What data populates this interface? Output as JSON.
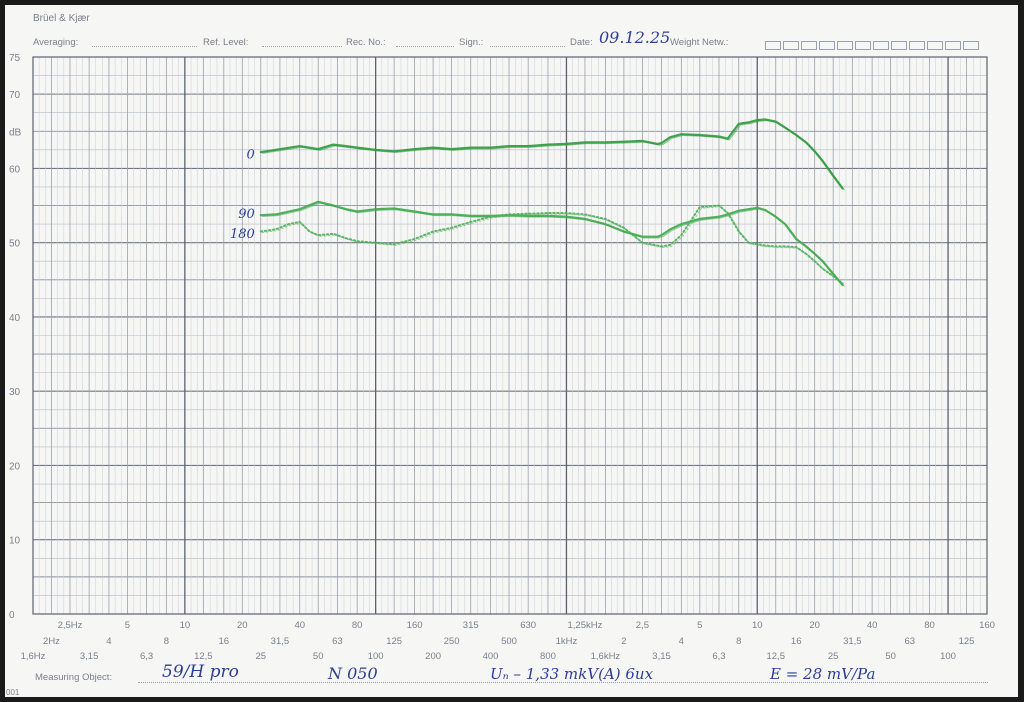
{
  "header": {
    "brand": "Brüel & Kjær",
    "averaging_label": "Averaging:",
    "ref_level_label": "Ref. Level:",
    "rec_no_label": "Rec. No.:",
    "sign_label": "Sign.:",
    "date_label": "Date:",
    "date_value": "09.12.25",
    "weight_netw_label": "Weight Netw.:"
  },
  "footer": {
    "measuring_object_label": "Measuring Object:",
    "object_name": "59/H pro",
    "serial": "N 050",
    "voltage": "Uₙ – 1,33 mkV(A) 6ux",
    "sensitivity": "E = 28 mV/Pa",
    "corner_code": "001"
  },
  "chart_data": {
    "type": "line",
    "title": "",
    "xlabel": "",
    "ylabel": "dB",
    "x_scale": "log",
    "xlim_hz": [
      1.6,
      160000
    ],
    "ylim": [
      0,
      75
    ],
    "grid": true,
    "y_ticks": [
      0,
      10,
      20,
      30,
      40,
      50,
      60,
      70,
      75
    ],
    "y_tick_labels": [
      "0",
      "10",
      "20",
      "30",
      "40",
      "50",
      "60",
      "70",
      "75"
    ],
    "dB_label_value": 65,
    "x_tick_rows": [
      [
        {
          "f": 2.5,
          "label": "2,5Hz"
        },
        {
          "f": 5,
          "label": "5"
        },
        {
          "f": 10,
          "label": "10"
        },
        {
          "f": 20,
          "label": "20"
        },
        {
          "f": 40,
          "label": "40"
        },
        {
          "f": 80,
          "label": "80"
        },
        {
          "f": 160,
          "label": "160"
        },
        {
          "f": 315,
          "label": "315"
        },
        {
          "f": 630,
          "label": "630"
        },
        {
          "f": 1250,
          "label": "1,25kHz"
        },
        {
          "f": 2500,
          "label": "2,5"
        },
        {
          "f": 5000,
          "label": "5"
        },
        {
          "f": 10000,
          "label": "10"
        },
        {
          "f": 20000,
          "label": "20"
        },
        {
          "f": 40000,
          "label": "40"
        },
        {
          "f": 80000,
          "label": "80"
        },
        {
          "f": 160000,
          "label": "160"
        }
      ],
      [
        {
          "f": 2,
          "label": "2Hz"
        },
        {
          "f": 4,
          "label": "4"
        },
        {
          "f": 8,
          "label": "8"
        },
        {
          "f": 16,
          "label": "16"
        },
        {
          "f": 31.5,
          "label": "31,5"
        },
        {
          "f": 63,
          "label": "63"
        },
        {
          "f": 125,
          "label": "125"
        },
        {
          "f": 250,
          "label": "250"
        },
        {
          "f": 500,
          "label": "500"
        },
        {
          "f": 1000,
          "label": "1kHz"
        },
        {
          "f": 2000,
          "label": "2"
        },
        {
          "f": 4000,
          "label": "4"
        },
        {
          "f": 8000,
          "label": "8"
        },
        {
          "f": 16000,
          "label": "16"
        },
        {
          "f": 31500,
          "label": "31,5"
        },
        {
          "f": 63000,
          "label": "63"
        },
        {
          "f": 125000,
          "label": "125"
        }
      ],
      [
        {
          "f": 1.6,
          "label": "1,6Hz"
        },
        {
          "f": 3.15,
          "label": "3,15"
        },
        {
          "f": 6.3,
          "label": "6,3"
        },
        {
          "f": 12.5,
          "label": "12,5"
        },
        {
          "f": 25,
          "label": "25"
        },
        {
          "f": 50,
          "label": "50"
        },
        {
          "f": 100,
          "label": "100"
        },
        {
          "f": 200,
          "label": "200"
        },
        {
          "f": 400,
          "label": "400"
        },
        {
          "f": 800,
          "label": "800"
        },
        {
          "f": 1600,
          "label": "1,6kHz"
        },
        {
          "f": 3150,
          "label": "3,15"
        },
        {
          "f": 6300,
          "label": "6,3"
        },
        {
          "f": 12500,
          "label": "12,5"
        },
        {
          "f": 25000,
          "label": "25"
        },
        {
          "f": 50000,
          "label": "50"
        },
        {
          "f": 100000,
          "label": "100"
        }
      ]
    ],
    "series": [
      {
        "name": "0",
        "color": "#2e9a3c",
        "style": "solid",
        "x": [
          25,
          30,
          40,
          50,
          60,
          70,
          80,
          100,
          125,
          160,
          200,
          250,
          315,
          400,
          500,
          630,
          800,
          1000,
          1250,
          1600,
          2000,
          2500,
          3000,
          3150,
          3500,
          4000,
          5000,
          6300,
          7000,
          8000,
          9000,
          10000,
          11000,
          12500,
          14000,
          16000,
          18000,
          20000,
          22000,
          25000,
          28000
        ],
        "y": [
          62.2,
          62.5,
          63.0,
          62.6,
          63.2,
          63.0,
          62.8,
          62.5,
          62.3,
          62.6,
          62.8,
          62.6,
          62.8,
          62.8,
          63.0,
          63.0,
          63.2,
          63.3,
          63.5,
          63.5,
          63.6,
          63.7,
          63.3,
          63.4,
          64.2,
          64.6,
          64.5,
          64.3,
          64.0,
          66.0,
          66.2,
          66.5,
          66.6,
          66.3,
          65.5,
          64.5,
          63.5,
          62.3,
          61.0,
          59.0,
          57.3
        ]
      },
      {
        "name": "90",
        "color": "#3fa84d",
        "style": "solid",
        "x": [
          25,
          30,
          40,
          50,
          60,
          70,
          80,
          100,
          125,
          160,
          200,
          250,
          315,
          400,
          500,
          630,
          800,
          1000,
          1250,
          1600,
          2000,
          2500,
          3000,
          3150,
          3500,
          4000,
          5000,
          6300,
          7000,
          8000,
          9000,
          10000,
          11000,
          12500,
          14000,
          16000,
          18000,
          20000,
          22000,
          25000,
          28000
        ],
        "y": [
          53.7,
          53.8,
          54.5,
          55.5,
          55.0,
          54.5,
          54.2,
          54.5,
          54.6,
          54.2,
          53.8,
          53.8,
          53.6,
          53.6,
          53.7,
          53.6,
          53.6,
          53.5,
          53.2,
          52.5,
          51.5,
          50.8,
          50.8,
          51.0,
          51.8,
          52.5,
          53.2,
          53.5,
          53.8,
          54.3,
          54.5,
          54.7,
          54.4,
          53.5,
          52.5,
          50.5,
          49.5,
          48.5,
          47.5,
          45.8,
          44.3
        ]
      },
      {
        "name": "180",
        "color": "#4cb05a",
        "style": "dotted",
        "x": [
          25,
          30,
          35,
          40,
          45,
          50,
          60,
          70,
          80,
          100,
          125,
          160,
          200,
          250,
          315,
          400,
          500,
          630,
          800,
          1000,
          1250,
          1600,
          2000,
          2500,
          3000,
          3150,
          3500,
          4000,
          5000,
          6300,
          7000,
          8000,
          9000,
          10000,
          11000,
          12500,
          14000,
          16000,
          18000,
          20000,
          22000,
          25000,
          28000
        ],
        "y": [
          51.5,
          51.8,
          52.5,
          52.8,
          51.5,
          51.0,
          51.2,
          50.6,
          50.2,
          50.0,
          49.8,
          50.5,
          51.5,
          52.0,
          52.8,
          53.5,
          53.8,
          53.9,
          54.0,
          54.0,
          53.8,
          53.2,
          52.0,
          50.0,
          49.6,
          49.5,
          49.7,
          51.0,
          54.8,
          55.0,
          54.0,
          51.5,
          50.0,
          49.8,
          49.6,
          49.5,
          49.5,
          49.4,
          48.5,
          47.5,
          46.5,
          45.5,
          44.5
        ]
      }
    ],
    "curve_labels": [
      {
        "text": "0",
        "y": 62.0
      },
      {
        "text": "90",
        "y": 54.0
      },
      {
        "text": "180",
        "y": 51.3
      }
    ]
  }
}
